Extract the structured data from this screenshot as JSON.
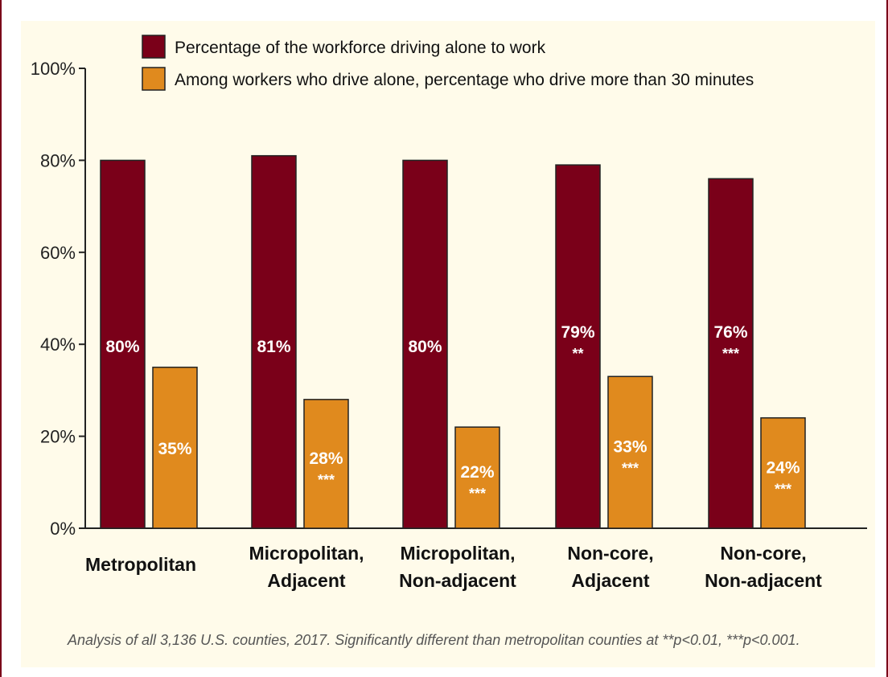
{
  "header": {
    "title_fragment": ""
  },
  "colors": {
    "drive_alone": "#7a0019",
    "long_commute": "#e08a1e",
    "panel_bg": "#fffbea",
    "axis": "#222222"
  },
  "caption": "Analysis of all 3,136 U.S. counties, 2017. Significantly different than metropolitan counties at **p<0.01, ***p<0.001.",
  "chart_data": {
    "type": "bar",
    "title": "",
    "xlabel": "",
    "ylabel": "",
    "ylim": [
      0,
      100
    ],
    "yticks": [
      "0%",
      "20%",
      "40%",
      "60%",
      "80%",
      "100%"
    ],
    "legend_position": "top",
    "categories": [
      [
        "Metropolitan"
      ],
      [
        "Micropolitan,",
        "Adjacent"
      ],
      [
        "Micropolitan,",
        "Non-adjacent"
      ],
      [
        "Non-core,",
        "Adjacent"
      ],
      [
        "Non-core,",
        "Non-adjacent"
      ]
    ],
    "series": [
      {
        "name": "Percentage of the workforce driving alone to work",
        "values": [
          80,
          81,
          80,
          79,
          76
        ],
        "labels": [
          "80%",
          "81%",
          "80%",
          "79%",
          "76%"
        ],
        "significance": [
          "",
          "",
          "",
          "**",
          "***"
        ]
      },
      {
        "name": "Among workers who drive alone, percentage who drive more than 30 minutes",
        "values": [
          35,
          28,
          22,
          33,
          24
        ],
        "labels": [
          "35%",
          "28%",
          "22%",
          "33%",
          "24%"
        ],
        "significance": [
          "",
          "***",
          "***",
          "***",
          "***"
        ]
      }
    ]
  }
}
